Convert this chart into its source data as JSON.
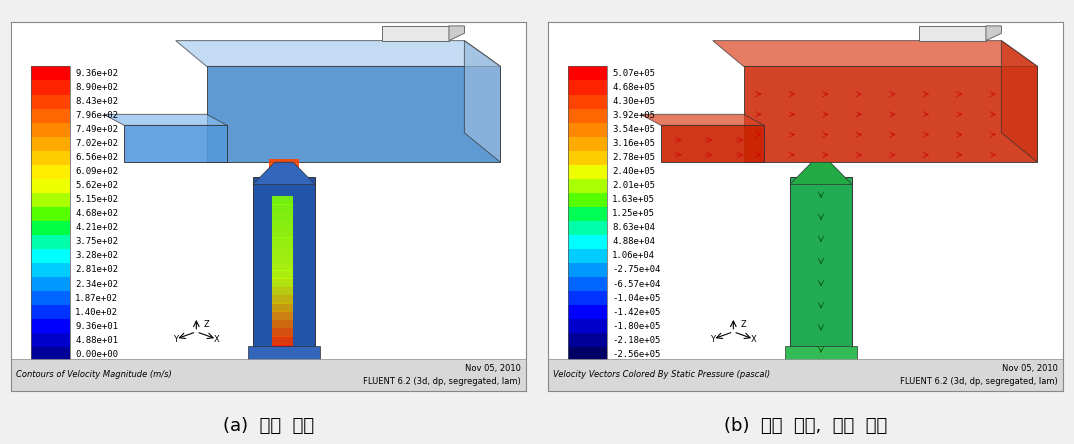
{
  "fig_width": 10.74,
  "fig_height": 4.44,
  "dpi": 100,
  "bg_color": "#f0f0f0",
  "panel_bg": "#ffffff",
  "border_color": "#888888",
  "left_colorbar_labels": [
    "9.36e+02",
    "8.90e+02",
    "8.43e+02",
    "7.96e+02",
    "7.49e+02",
    "7.02e+02",
    "6.56e+02",
    "6.09e+02",
    "5.62e+02",
    "5.15e+02",
    "4.68e+02",
    "4.21e+02",
    "3.75e+02",
    "3.28e+02",
    "2.81e+02",
    "2.34e+02",
    "1.87e+02",
    "1.40e+02",
    "9.36e+01",
    "4.88e+01",
    "0.00e+00"
  ],
  "left_colorbar_colors": [
    "#ff0000",
    "#ff2200",
    "#ff4400",
    "#ff6600",
    "#ff8800",
    "#ffaa00",
    "#ffcc00",
    "#ffee00",
    "#eeff00",
    "#aaff00",
    "#55ff00",
    "#00ff44",
    "#00ffaa",
    "#00ffff",
    "#00ccff",
    "#0099ff",
    "#0066ff",
    "#0033ff",
    "#0000ff",
    "#0000cc",
    "#000099"
  ],
  "right_colorbar_labels": [
    "5.07e+05",
    "4.68e+05",
    "4.30e+05",
    "3.92e+05",
    "3.54e+05",
    "3.16e+05",
    "2.78e+05",
    "2.40e+05",
    "2.01e+05",
    "1.63e+05",
    "1.25e+05",
    "8.63e+04",
    "4.88e+04",
    "1.06e+04",
    "-2.75e+04",
    "-6.57e+04",
    "-1.04e+05",
    "-1.42e+05",
    "-1.80e+05",
    "-2.18e+05",
    "-2.56e+05"
  ],
  "right_colorbar_colors": [
    "#ff0000",
    "#ff2200",
    "#ff4400",
    "#ff6600",
    "#ff8800",
    "#ffaa00",
    "#ffcc00",
    "#eeff00",
    "#aaff00",
    "#55ff00",
    "#00ff55",
    "#00ffaa",
    "#00ffff",
    "#00ccff",
    "#0099ff",
    "#0066ff",
    "#0033ff",
    "#0000ff",
    "#0000cc",
    "#000099",
    "#000066"
  ],
  "left_footer_left": "Contours of Velocity Magnitude (m/s)",
  "left_footer_right_line1": "Nov 05, 2010",
  "left_footer_right_line2": "FLUENT 6.2 (3d, dp, segregated, lam)",
  "right_footer_left": "Velocity Vectors Colored By Static Pressure (pascal)",
  "right_footer_right_line1": "Nov 05, 2010",
  "right_footer_right_line2": "FLUENT 6.2 (3d, dp, segregated, lam)",
  "caption_left": "(a)  속도  분포",
  "caption_right": "(b)  정압  분포,  속도  벡터",
  "caption_fontsize": 13,
  "label_fontsize": 6.5,
  "footer_fontsize": 6.0
}
